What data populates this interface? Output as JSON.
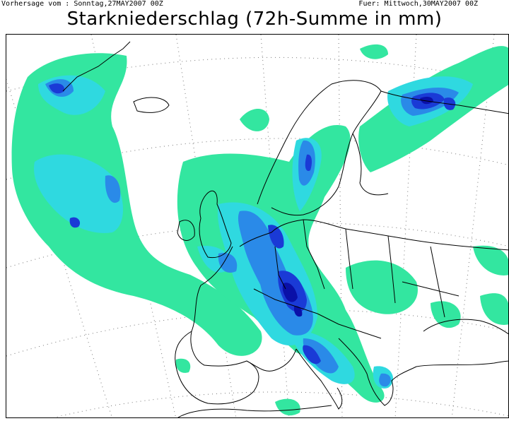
{
  "header": {
    "forecast_from": "Vorhersage vom : Sonntag,27MAY2007 00Z",
    "valid_for": "Fuer: Mittwoch,30MAY2007 00Z",
    "title": "Starkniederschlag (72h-Summe in mm)"
  },
  "colors": {
    "level_1": "#33e6a0",
    "level_2": "#2fd9e0",
    "level_3": "#2a8ae8",
    "level_4": "#1a3ad6",
    "level_5": "#0a10a8",
    "coastline": "#000000",
    "graticule": "#777777"
  }
}
